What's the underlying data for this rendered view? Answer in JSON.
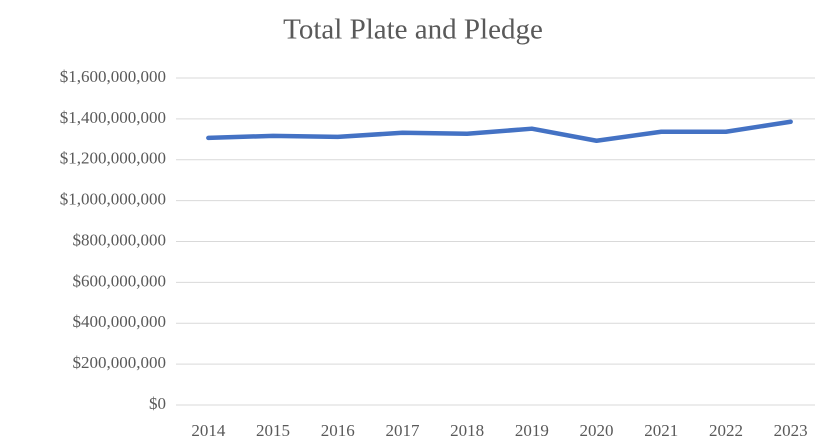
{
  "chart_data": {
    "type": "line",
    "title": "Total Plate and Pledge",
    "categories": [
      "2014",
      "2015",
      "2016",
      "2017",
      "2018",
      "2019",
      "2020",
      "2021",
      "2022",
      "2023"
    ],
    "series": [
      {
        "name": "Total Plate and Pledge",
        "color": "#4472c4",
        "values": [
          1307000000,
          1317000000,
          1312000000,
          1332000000,
          1327000000,
          1352000000,
          1293000000,
          1337000000,
          1337000000,
          1386000000
        ]
      }
    ],
    "ylim": [
      0,
      1600000000
    ],
    "yticks": [
      {
        "value": 0,
        "label": "$0"
      },
      {
        "value": 200000000,
        "label": "$200,000,000"
      },
      {
        "value": 400000000,
        "label": "$400,000,000"
      },
      {
        "value": 600000000,
        "label": "$600,000,000"
      },
      {
        "value": 800000000,
        "label": "$800,000,000"
      },
      {
        "value": 1000000000,
        "label": "$1,000,000,000"
      },
      {
        "value": 1200000000,
        "label": "$1,200,000,000"
      },
      {
        "value": 1400000000,
        "label": "$1,400,000,000"
      },
      {
        "value": 1600000000,
        "label": "$1,600,000,000"
      }
    ],
    "grid": true
  }
}
